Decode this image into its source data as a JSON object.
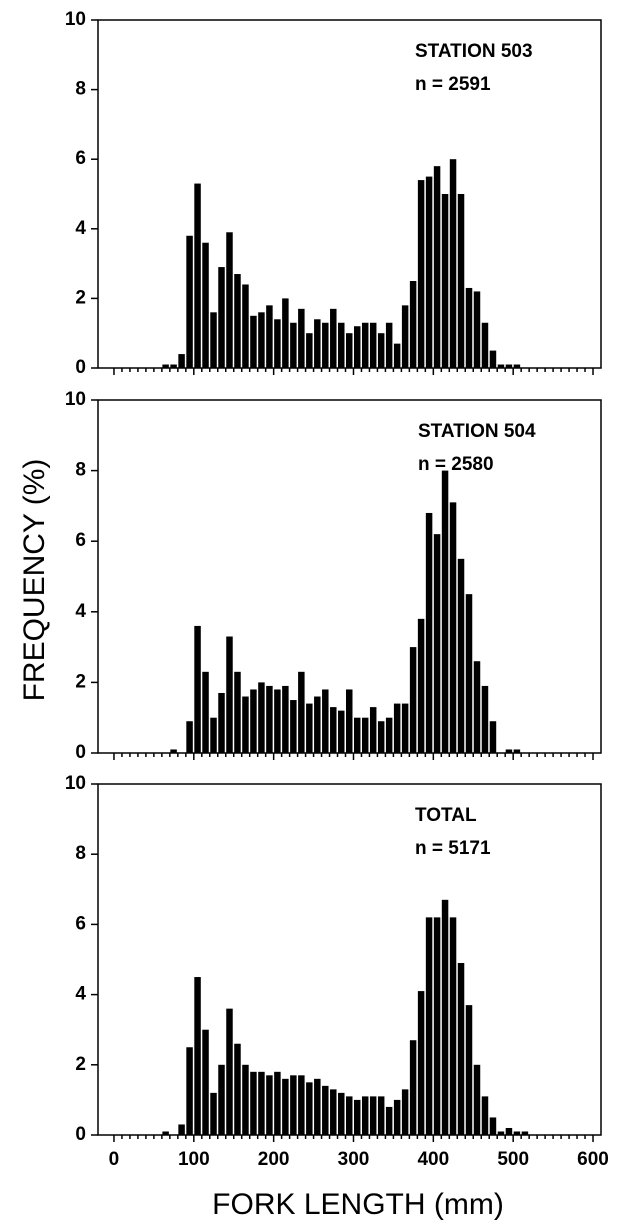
{
  "chart_data": [
    {
      "type": "histogram",
      "annotations": [
        "STATION 503",
        "n = 2591"
      ],
      "bins": [
        60,
        70,
        80,
        90,
        100,
        110,
        120,
        130,
        140,
        150,
        160,
        170,
        180,
        190,
        200,
        210,
        220,
        230,
        240,
        250,
        260,
        270,
        280,
        290,
        300,
        310,
        320,
        330,
        340,
        350,
        360,
        370,
        380,
        390,
        400,
        410,
        420,
        430,
        440,
        450,
        460,
        470,
        480,
        490,
        500,
        510,
        520
      ],
      "values": [
        0.1,
        0.1,
        0.4,
        3.8,
        5.3,
        3.6,
        1.6,
        2.9,
        3.9,
        2.7,
        2.4,
        1.5,
        1.6,
        1.8,
        1.4,
        2.0,
        1.3,
        1.7,
        1.0,
        1.4,
        1.3,
        1.7,
        1.3,
        1.0,
        1.2,
        1.3,
        1.3,
        1.0,
        1.3,
        0.7,
        1.8,
        2.5,
        5.4,
        5.5,
        5.8,
        5.0,
        6.0,
        5.0,
        2.3,
        2.2,
        1.3,
        0.5,
        0.1,
        0.1,
        0.1,
        0
      ],
      "color": "#000000",
      "xlim": [
        -20,
        610
      ],
      "xticks": [
        0,
        100,
        200,
        300,
        400,
        500,
        600
      ],
      "show_xtick_labels": false,
      "ylim": [
        0,
        10
      ],
      "yticks": [
        0,
        2,
        4,
        6,
        8,
        10
      ]
    },
    {
      "type": "histogram",
      "annotations": [
        "STATION 504",
        "n = 2580"
      ],
      "ylabel": "FREQUENCY (%)",
      "bins": [
        60,
        70,
        80,
        90,
        100,
        110,
        120,
        130,
        140,
        150,
        160,
        170,
        180,
        190,
        200,
        210,
        220,
        230,
        240,
        250,
        260,
        270,
        280,
        290,
        300,
        310,
        320,
        330,
        340,
        350,
        360,
        370,
        380,
        390,
        400,
        410,
        420,
        430,
        440,
        450,
        460,
        470,
        480,
        490,
        500,
        510,
        520
      ],
      "values": [
        0,
        0.1,
        0,
        0.9,
        3.6,
        2.3,
        1.0,
        1.7,
        3.3,
        2.3,
        1.6,
        1.8,
        2.0,
        1.9,
        1.8,
        1.9,
        1.5,
        2.3,
        1.4,
        1.6,
        1.8,
        1.3,
        1.2,
        1.8,
        1.0,
        1.0,
        1.3,
        0.9,
        1.0,
        1.4,
        1.4,
        3.0,
        3.8,
        6.8,
        6.2,
        8.0,
        7.1,
        5.5,
        4.5,
        2.6,
        1.9,
        0.9,
        0,
        0.1,
        0.1,
        0
      ],
      "color": "#000000",
      "xlim": [
        -20,
        610
      ],
      "xticks": [
        0,
        100,
        200,
        300,
        400,
        500,
        600
      ],
      "show_xtick_labels": false,
      "ylim": [
        0,
        10
      ],
      "yticks": [
        0,
        2,
        4,
        6,
        8,
        10
      ]
    },
    {
      "type": "histogram",
      "annotations": [
        "TOTAL",
        "n = 5171"
      ],
      "xlabel": "FORK LENGTH (mm)",
      "bins": [
        60,
        70,
        80,
        90,
        100,
        110,
        120,
        130,
        140,
        150,
        160,
        170,
        180,
        190,
        200,
        210,
        220,
        230,
        240,
        250,
        260,
        270,
        280,
        290,
        300,
        310,
        320,
        330,
        340,
        350,
        360,
        370,
        380,
        390,
        400,
        410,
        420,
        430,
        440,
        450,
        460,
        470,
        480,
        490,
        500,
        510,
        520
      ],
      "values": [
        0.1,
        0,
        0.3,
        2.5,
        4.5,
        3.0,
        1.2,
        2.0,
        3.6,
        2.6,
        2.0,
        1.8,
        1.8,
        1.7,
        1.8,
        1.6,
        1.7,
        1.7,
        1.5,
        1.6,
        1.4,
        1.3,
        1.2,
        1.1,
        1.0,
        1.1,
        1.1,
        1.1,
        0.8,
        1.0,
        1.3,
        2.7,
        4.1,
        6.2,
        6.2,
        6.7,
        6.2,
        4.9,
        3.7,
        2.0,
        1.1,
        0.5,
        0.1,
        0.2,
        0.1,
        0.1
      ],
      "color": "#000000",
      "xlim": [
        -20,
        610
      ],
      "xticks": [
        0,
        100,
        200,
        300,
        400,
        500,
        600
      ],
      "show_xtick_labels": true,
      "ylim": [
        0,
        10
      ],
      "yticks": [
        0,
        2,
        4,
        6,
        8,
        10
      ]
    }
  ]
}
